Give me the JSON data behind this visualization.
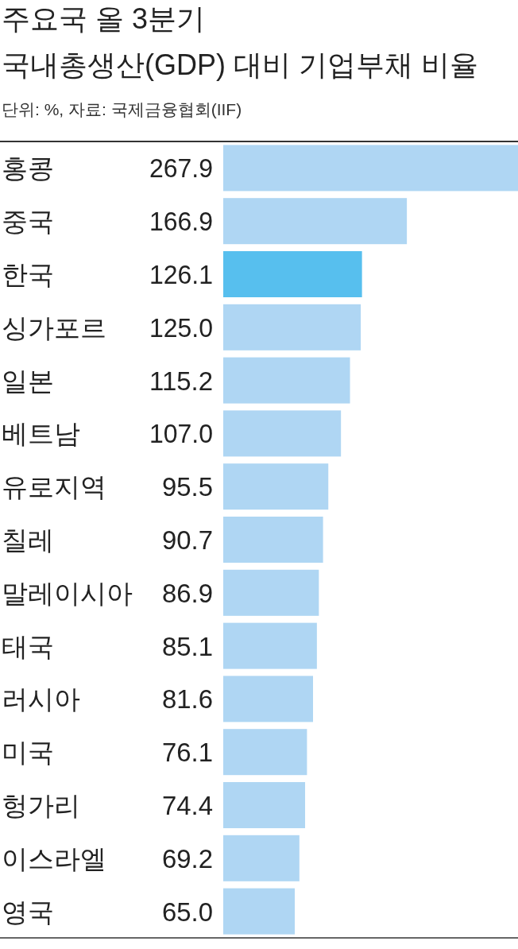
{
  "chart_data": {
    "type": "bar",
    "orientation": "horizontal",
    "title": "주요국 올 3분기\n국내총생산(GDP) 대비 기업부채 비율",
    "subtitle": "단위: %, 자료: 국제금융협회(IIF)",
    "categories": [
      "홍콩",
      "중국",
      "한국",
      "싱가포르",
      "일본",
      "베트남",
      "유로지역",
      "칠레",
      "말레이시아",
      "태국",
      "러시아",
      "미국",
      "헝가리",
      "이스라엘",
      "영국"
    ],
    "values": [
      267.9,
      166.9,
      126.1,
      125.0,
      115.2,
      107.0,
      95.5,
      90.7,
      86.9,
      85.1,
      81.6,
      76.1,
      74.4,
      69.2,
      65.0
    ],
    "value_labels": [
      "267.9",
      "166.9",
      "126.1",
      "125.0",
      "115.2",
      "107.0",
      "95.5",
      "90.7",
      "86.9",
      "85.1",
      "81.6",
      "76.1",
      "74.4",
      "69.2",
      "65.0"
    ],
    "colors": [
      "#afd6f3",
      "#afd6f3",
      "#57bfee",
      "#afd6f3",
      "#afd6f3",
      "#afd6f3",
      "#afd6f3",
      "#afd6f3",
      "#afd6f3",
      "#afd6f3",
      "#afd6f3",
      "#afd6f3",
      "#afd6f3",
      "#afd6f3",
      "#afd6f3"
    ]
  }
}
